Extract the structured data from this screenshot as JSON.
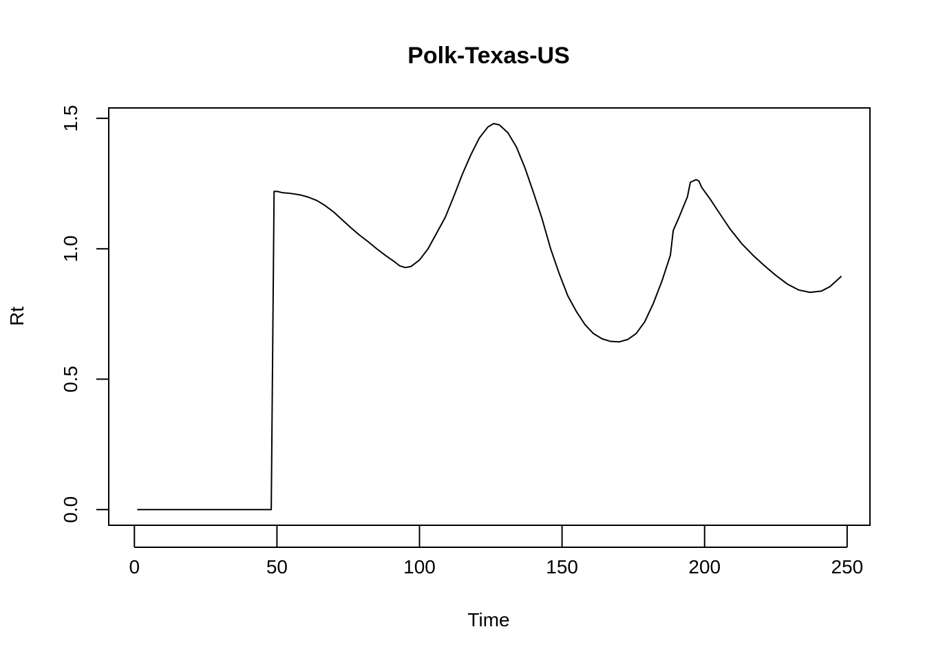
{
  "chart_data": {
    "type": "line",
    "title": "Polk-Texas-US",
    "xlabel": "Time",
    "ylabel": "Rt",
    "xlim": [
      -9,
      258
    ],
    "ylim": [
      -0.06,
      1.54
    ],
    "xticks": [
      0,
      50,
      100,
      150,
      200,
      250
    ],
    "yticks": [
      0.0,
      0.5,
      1.0,
      1.5
    ],
    "xtick_labels": [
      "0",
      "50",
      "100",
      "150",
      "200",
      "250"
    ],
    "ytick_labels": [
      "0.0",
      "0.5",
      "1.0",
      "1.5"
    ],
    "grid": false,
    "legend": "none",
    "series": [
      {
        "color": "#000000",
        "points": [
          [
            1,
            0.0
          ],
          [
            10,
            0.0
          ],
          [
            20,
            0.0
          ],
          [
            30,
            0.0
          ],
          [
            40,
            0.0
          ],
          [
            48,
            0.0
          ],
          [
            49,
            1.22
          ],
          [
            50,
            1.22
          ],
          [
            52,
            1.215
          ],
          [
            55,
            1.212
          ],
          [
            58,
            1.207
          ],
          [
            61,
            1.198
          ],
          [
            64,
            1.185
          ],
          [
            67,
            1.165
          ],
          [
            70,
            1.14
          ],
          [
            73,
            1.11
          ],
          [
            76,
            1.08
          ],
          [
            79,
            1.052
          ],
          [
            82,
            1.027
          ],
          [
            85,
            1.0
          ],
          [
            88,
            0.975
          ],
          [
            91,
            0.952
          ],
          [
            93,
            0.935
          ],
          [
            95,
            0.928
          ],
          [
            97,
            0.932
          ],
          [
            100,
            0.957
          ],
          [
            103,
            1.0
          ],
          [
            106,
            1.06
          ],
          [
            109,
            1.12
          ],
          [
            112,
            1.2
          ],
          [
            115,
            1.285
          ],
          [
            118,
            1.36
          ],
          [
            121,
            1.425
          ],
          [
            124,
            1.467
          ],
          [
            126,
            1.48
          ],
          [
            128,
            1.475
          ],
          [
            131,
            1.445
          ],
          [
            134,
            1.39
          ],
          [
            137,
            1.31
          ],
          [
            140,
            1.215
          ],
          [
            143,
            1.115
          ],
          [
            146,
            1.0
          ],
          [
            149,
            0.905
          ],
          [
            152,
            0.82
          ],
          [
            155,
            0.76
          ],
          [
            158,
            0.71
          ],
          [
            161,
            0.675
          ],
          [
            164,
            0.655
          ],
          [
            167,
            0.645
          ],
          [
            170,
            0.643
          ],
          [
            173,
            0.652
          ],
          [
            176,
            0.675
          ],
          [
            179,
            0.72
          ],
          [
            182,
            0.79
          ],
          [
            185,
            0.875
          ],
          [
            188,
            0.975
          ],
          [
            189,
            1.07
          ],
          [
            191,
            1.12
          ],
          [
            194,
            1.2
          ],
          [
            195,
            1.255
          ],
          [
            197,
            1.265
          ],
          [
            198,
            1.26
          ],
          [
            199,
            1.235
          ],
          [
            202,
            1.19
          ],
          [
            205,
            1.14
          ],
          [
            209,
            1.075
          ],
          [
            213,
            1.02
          ],
          [
            217,
            0.975
          ],
          [
            221,
            0.935
          ],
          [
            225,
            0.898
          ],
          [
            229,
            0.865
          ],
          [
            233,
            0.842
          ],
          [
            237,
            0.833
          ],
          [
            241,
            0.838
          ],
          [
            244,
            0.855
          ],
          [
            248,
            0.895
          ]
        ]
      }
    ]
  }
}
